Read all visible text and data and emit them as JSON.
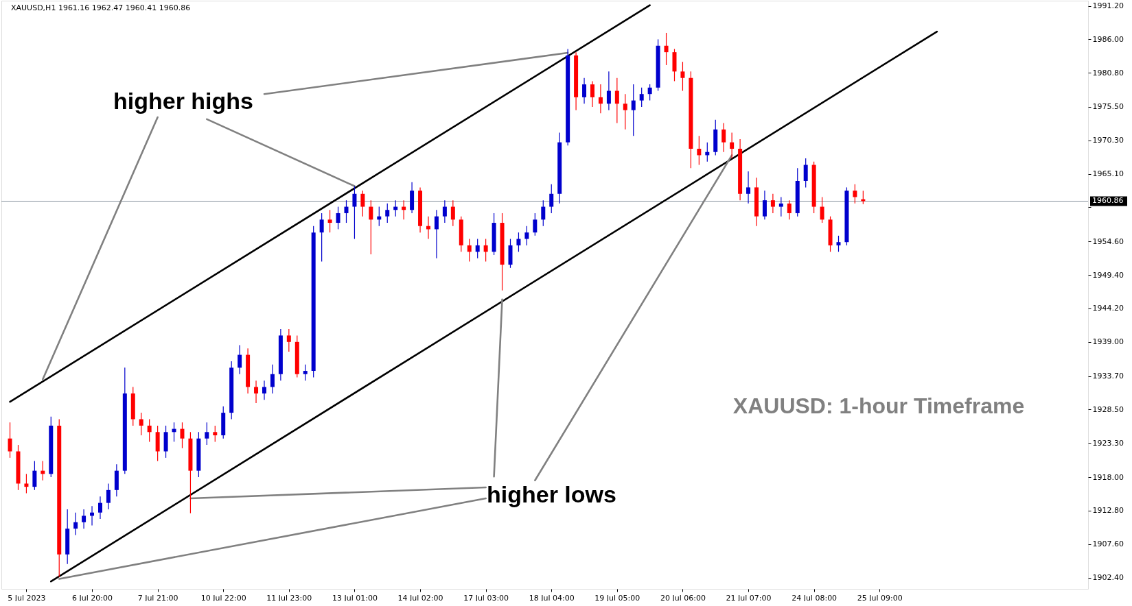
{
  "chart_data": {
    "type": "candlestick",
    "title": "XAUUSD,H1  1961.16 1962.47 1960.41 1960.86",
    "annotations": [
      "higher highs",
      "higher lows",
      "XAUUSD: 1-hour Timeframe"
    ],
    "categories": [
      null,
      null,
      "5 Jul 2023",
      null,
      null,
      null,
      null,
      null,
      null,
      null,
      "6 Jul 20:00",
      null,
      null,
      null,
      null,
      null,
      null,
      null,
      "7 Jul 21:00",
      null,
      null,
      null,
      null,
      null,
      null,
      null,
      "10 Jul 22:00",
      null,
      null,
      null,
      null,
      null,
      null,
      null,
      "11 Jul 23:00",
      null,
      null,
      null,
      null,
      null,
      null,
      null,
      "13 Jul 01:00",
      null,
      null,
      null,
      null,
      null,
      null,
      null,
      "14 Jul 02:00",
      null,
      null,
      null,
      null,
      null,
      null,
      null,
      "17 Jul 03:00",
      null,
      null,
      null,
      null,
      null,
      null,
      null,
      "18 Jul 04:00",
      null,
      null,
      null,
      null,
      null,
      null,
      null,
      "19 Jul 05:00",
      null,
      null,
      null,
      null,
      null,
      null,
      null,
      "20 Jul 06:00",
      null,
      null,
      null,
      null,
      null,
      null,
      null,
      "21 Jul 07:00",
      null,
      null,
      null,
      null,
      null,
      null,
      null,
      "24 Jul 08:00",
      null,
      null,
      null,
      null,
      null,
      null,
      null,
      "25 Jul 09:00",
      null,
      null,
      null,
      null,
      null,
      null,
      null,
      null,
      null,
      null,
      null,
      null,
      null,
      null,
      null,
      null,
      null,
      null,
      null,
      null,
      null,
      null,
      null,
      null,
      null
    ],
    "ylim": [
      1900.65,
      1992.0
    ],
    "yticks": [
      {
        "value": 1991.2,
        "label": "1991.20"
      },
      {
        "value": 1986.0,
        "label": "1986.00"
      },
      {
        "value": 1980.8,
        "label": "1980.80"
      },
      {
        "value": 1975.5,
        "label": "1975.50"
      },
      {
        "value": 1970.3,
        "label": "1970.30"
      },
      {
        "value": 1965.1,
        "label": "1965.10"
      },
      {
        "value": 1959.9,
        "label": null
      },
      {
        "value": 1954.6,
        "label": "1954.60"
      },
      {
        "value": 1949.4,
        "label": "1949.40"
      },
      {
        "value": 1944.2,
        "label": "1944.20"
      },
      {
        "value": 1939.0,
        "label": "1939.00"
      },
      {
        "value": 1933.7,
        "label": "1933.70"
      },
      {
        "value": 1928.5,
        "label": "1928.50"
      },
      {
        "value": 1923.3,
        "label": "1923.30"
      },
      {
        "value": 1918.0,
        "label": "1918.00"
      },
      {
        "value": 1912.8,
        "label": "1912.80"
      },
      {
        "value": 1907.6,
        "label": "1907.60"
      },
      {
        "value": 1902.4,
        "label": "1902.40"
      }
    ],
    "ref_lines": [
      {
        "axis": "y",
        "value": 1960.86,
        "label": "1960.86",
        "color": "#8a96a0"
      }
    ],
    "grid": false,
    "series": [
      {
        "ohlc": [
          [
            1924,
            1926.5,
            1921,
            1922
          ],
          [
            1922,
            1923,
            1916,
            1917
          ],
          [
            1917,
            1918.5,
            1915.5,
            1916.5
          ],
          [
            1916.5,
            1920.5,
            1916,
            1919
          ],
          [
            1919,
            1920.5,
            1917.5,
            1918.5
          ],
          [
            1918.5,
            1927.4,
            1918,
            1926
          ],
          [
            1926,
            1927,
            1902.5,
            1906
          ],
          [
            1906,
            1913,
            1904.5,
            1910
          ],
          [
            1910,
            1912.5,
            1909,
            1911
          ],
          [
            1911,
            1913,
            1910,
            1912
          ],
          [
            1912,
            1913.5,
            1910.5,
            1912.5
          ],
          [
            1912.5,
            1915,
            1911.5,
            1914
          ],
          [
            1914,
            1917,
            1913,
            1916
          ],
          [
            1916,
            1920,
            1915,
            1919
          ],
          [
            1919,
            1935,
            1918.5,
            1931
          ],
          [
            1931,
            1932,
            1926,
            1927
          ],
          [
            1927,
            1928,
            1924.5,
            1926
          ],
          [
            1926,
            1927,
            1923.5,
            1925
          ],
          [
            1925,
            1926,
            1920.5,
            1922
          ],
          [
            1922,
            1926,
            1921,
            1925
          ],
          [
            1925,
            1926.5,
            1923.5,
            1925.5
          ],
          [
            1925.5,
            1926.5,
            1922.5,
            1924
          ],
          [
            1924,
            1925,
            1912.4,
            1919
          ],
          [
            1919,
            1925,
            1918,
            1924
          ],
          [
            1924,
            1926.5,
            1923,
            1925
          ],
          [
            1925,
            1926,
            1923.5,
            1924.5
          ],
          [
            1924.5,
            1929,
            1924,
            1928
          ],
          [
            1928,
            1936,
            1927,
            1935
          ],
          [
            1935,
            1938.5,
            1934,
            1937
          ],
          [
            1937,
            1938,
            1931,
            1932
          ],
          [
            1932,
            1933,
            1929.5,
            1931
          ],
          [
            1931,
            1933,
            1930,
            1932
          ],
          [
            1932,
            1935.5,
            1931,
            1934
          ],
          [
            1934,
            1941,
            1933,
            1940
          ],
          [
            1940,
            1941,
            1937.5,
            1939
          ],
          [
            1939,
            1940,
            1933.5,
            1934
          ],
          [
            1934,
            1935.5,
            1933,
            1934.5
          ],
          [
            1934.5,
            1957,
            1933.5,
            1956
          ],
          [
            1956,
            1959,
            1951.5,
            1958
          ],
          [
            1958,
            1959.5,
            1956,
            1957.5
          ],
          [
            1957.5,
            1960,
            1956.5,
            1959
          ],
          [
            1959,
            1961,
            1957.5,
            1960
          ],
          [
            1960,
            1963.2,
            1955,
            1962
          ],
          [
            1962,
            1962.5,
            1958.5,
            1960
          ],
          [
            1960,
            1961,
            1952.6,
            1958
          ],
          [
            1958,
            1960,
            1957,
            1958.5
          ],
          [
            1958.5,
            1960.5,
            1957.5,
            1959.5
          ],
          [
            1959.5,
            1961,
            1958.5,
            1960
          ],
          [
            1960,
            1961,
            1958,
            1959.5
          ],
          [
            1959.5,
            1963.8,
            1959,
            1962.5
          ],
          [
            1962.5,
            1963,
            1956,
            1957
          ],
          [
            1957,
            1958.5,
            1955,
            1956.5
          ],
          [
            1956.5,
            1959.5,
            1952,
            1958.5
          ],
          [
            1958.5,
            1961,
            1957.5,
            1960
          ],
          [
            1960,
            1961,
            1957,
            1958
          ],
          [
            1958,
            1958.5,
            1953,
            1954
          ],
          [
            1954,
            1955,
            1951.5,
            1953
          ],
          [
            1953,
            1955,
            1952,
            1954
          ],
          [
            1954,
            1955,
            1951.5,
            1953
          ],
          [
            1953,
            1959,
            1952.5,
            1957.5
          ],
          [
            1957.5,
            1959,
            1947,
            1951
          ],
          [
            1951,
            1955,
            1950.5,
            1954
          ],
          [
            1954,
            1956,
            1953,
            1955
          ],
          [
            1955,
            1957,
            1954,
            1956
          ],
          [
            1956,
            1959,
            1955.5,
            1958
          ],
          [
            1958,
            1961,
            1957,
            1960
          ],
          [
            1960,
            1963.5,
            1959,
            1962
          ],
          [
            1962,
            1971.5,
            1960.5,
            1970
          ],
          [
            1970,
            1984.5,
            1969.5,
            1983.5
          ],
          [
            1983.5,
            1984,
            1975,
            1977
          ],
          [
            1977,
            1980,
            1976,
            1979
          ],
          [
            1979,
            1979.5,
            1975.5,
            1977
          ],
          [
            1977,
            1979,
            1974.5,
            1976
          ],
          [
            1976,
            1981,
            1975,
            1978
          ],
          [
            1978,
            1980,
            1973,
            1976
          ],
          [
            1976,
            1977.5,
            1972,
            1975
          ],
          [
            1975,
            1979,
            1971,
            1976.5
          ],
          [
            1976.5,
            1978.5,
            1975.5,
            1977.5
          ],
          [
            1977.5,
            1979,
            1976.5,
            1978.5
          ],
          [
            1978.5,
            1986,
            1978,
            1985
          ],
          [
            1985,
            1987,
            1982,
            1984
          ],
          [
            1984,
            1984.5,
            1979.5,
            1981
          ],
          [
            1981,
            1982.5,
            1978,
            1980
          ],
          [
            1980,
            1981,
            1966,
            1969
          ],
          [
            1969,
            1971,
            1966.5,
            1968
          ],
          [
            1968,
            1970,
            1967,
            1968.5
          ],
          [
            1968.5,
            1973.5,
            1968,
            1972
          ],
          [
            1972,
            1973,
            1968.5,
            1970
          ],
          [
            1970,
            1971.5,
            1967.5,
            1969
          ],
          [
            1969,
            1970.5,
            1961,
            1962
          ],
          [
            1962,
            1965.5,
            1960.5,
            1963
          ],
          [
            1963,
            1964.5,
            1957,
            1958.5
          ],
          [
            1958.5,
            1962.5,
            1958,
            1961
          ],
          [
            1961,
            1962,
            1959,
            1960
          ],
          [
            1960,
            1961.5,
            1958.5,
            1960.5
          ],
          [
            1960.5,
            1961,
            1958,
            1959
          ],
          [
            1959,
            1966,
            1958.5,
            1964
          ],
          [
            1964,
            1967.5,
            1963,
            1966.5
          ],
          [
            1966.5,
            1967,
            1959,
            1960
          ],
          [
            1960,
            1961.5,
            1957.5,
            1958
          ],
          [
            1958,
            1958.5,
            1953,
            1954
          ],
          [
            1954,
            1955.5,
            1953,
            1954.5
          ],
          [
            1954.5,
            1963,
            1954,
            1962.5
          ],
          [
            1962.5,
            1963.5,
            1960.5,
            1961.5
          ],
          [
            1961.16,
            1962.47,
            1960.41,
            1960.86
          ],
          null,
          null,
          null,
          null,
          null,
          null,
          null,
          null,
          null,
          null,
          null,
          null,
          null,
          null,
          null,
          null,
          null,
          null,
          null,
          null,
          null,
          null,
          null,
          null,
          null,
          null,
          null
        ],
        "colors": [
          "#ff0000",
          "#ff0000",
          "#ff0000",
          "#0000cd",
          "#ff0000",
          "#0000cd",
          "#ff0000",
          "#0000cd",
          "#0000cd",
          "#0000cd",
          "#0000cd",
          "#0000cd",
          "#0000cd",
          "#0000cd",
          "#0000cd",
          "#ff0000",
          "#ff0000",
          "#ff0000",
          "#ff0000",
          "#0000cd",
          "#0000cd",
          "#ff0000",
          "#ff0000",
          "#0000cd",
          "#0000cd",
          "#ff0000",
          "#0000cd",
          "#0000cd",
          "#0000cd",
          "#ff0000",
          "#ff0000",
          "#0000cd",
          "#0000cd",
          "#0000cd",
          "#ff0000",
          "#ff0000",
          "#0000cd",
          "#0000cd",
          "#0000cd",
          "#ff0000",
          "#0000cd",
          "#0000cd",
          "#0000cd",
          "#ff0000",
          "#ff0000",
          "#0000cd",
          "#0000cd",
          "#0000cd",
          "#ff0000",
          "#0000cd",
          "#ff0000",
          "#ff0000",
          "#0000cd",
          "#0000cd",
          "#ff0000",
          "#ff0000",
          "#ff0000",
          "#0000cd",
          "#ff0000",
          "#0000cd",
          "#ff0000",
          "#0000cd",
          "#0000cd",
          "#0000cd",
          "#0000cd",
          "#0000cd",
          "#0000cd",
          "#0000cd",
          "#0000cd",
          "#ff0000",
          "#0000cd",
          "#ff0000",
          "#ff0000",
          "#0000cd",
          "#ff0000",
          "#ff0000",
          "#0000cd",
          "#0000cd",
          "#0000cd",
          "#0000cd",
          "#ff0000",
          "#ff0000",
          "#ff0000",
          "#ff0000",
          "#ff0000",
          "#0000cd",
          "#0000cd",
          "#ff0000",
          "#ff0000",
          "#ff0000",
          "#0000cd",
          "#ff0000",
          "#0000cd",
          "#ff0000",
          "#0000cd",
          "#ff0000",
          "#0000cd",
          "#0000cd",
          "#ff0000",
          "#ff0000",
          "#ff0000",
          "#0000cd",
          "#0000cd",
          "#ff0000",
          "#ff0000",
          null,
          null,
          null,
          null,
          null,
          null,
          null,
          null,
          null,
          null,
          null,
          null,
          null,
          null,
          null,
          null,
          null,
          null,
          null,
          null,
          null,
          null,
          null,
          null,
          null,
          null,
          null
        ]
      },
      {
        "type": "line",
        "color": "#000000",
        "values": [
          1929.7,
          null,
          null,
          null,
          null,
          null,
          null,
          null,
          null,
          null,
          null,
          null,
          null,
          null,
          null,
          null,
          null,
          null,
          null,
          null,
          null,
          null,
          null,
          null,
          null,
          null,
          null,
          null,
          null,
          null,
          null,
          null,
          null,
          null,
          null,
          null,
          null,
          null,
          null,
          null,
          null,
          null,
          null,
          null,
          null,
          null,
          null,
          null,
          null,
          null,
          null,
          null,
          null,
          null,
          null,
          null,
          null,
          null,
          null,
          null,
          null,
          null,
          null,
          null,
          null,
          null,
          null,
          null,
          null,
          null,
          null,
          null,
          null,
          null,
          null,
          null,
          null,
          null,
          1991.3,
          null,
          null,
          null,
          null,
          null,
          null,
          null,
          null,
          null,
          null,
          null,
          null,
          null,
          null,
          null,
          null,
          null,
          null,
          null,
          null,
          null,
          null,
          null,
          null,
          null,
          null,
          null,
          null,
          null,
          null,
          null,
          null,
          null,
          null,
          null,
          null,
          null,
          null,
          null,
          null,
          null,
          null,
          null,
          null,
          null,
          null,
          null,
          null,
          null,
          null,
          null,
          null,
          null
        ]
      },
      {
        "type": "line",
        "color": "#000000",
        "values": [
          null,
          null,
          null,
          null,
          null,
          1901.8,
          null,
          null,
          null,
          null,
          null,
          null,
          null,
          null,
          null,
          null,
          null,
          null,
          null,
          null,
          null,
          null,
          null,
          null,
          null,
          null,
          null,
          null,
          null,
          null,
          null,
          null,
          null,
          null,
          null,
          null,
          null,
          null,
          null,
          null,
          null,
          null,
          null,
          null,
          null,
          null,
          null,
          null,
          null,
          null,
          null,
          null,
          null,
          null,
          null,
          null,
          null,
          null,
          null,
          null,
          null,
          null,
          null,
          null,
          null,
          null,
          null,
          null,
          null,
          null,
          null,
          null,
          null,
          null,
          null,
          null,
          null,
          null,
          null,
          null,
          null,
          null,
          null,
          null,
          null,
          null,
          null,
          null,
          null,
          null,
          null,
          null,
          null,
          null,
          null,
          null,
          null,
          null,
          null,
          null,
          null,
          null,
          null,
          null,
          null,
          null,
          null,
          null,
          null,
          null,
          null,
          null,
          null,
          1987.2,
          null,
          null,
          null,
          null,
          null,
          null,
          null,
          null,
          null,
          null,
          null,
          null,
          null,
          null,
          null,
          null,
          null,
          null
        ]
      },
      {
        "type": "line",
        "color": "#808080",
        "values": [
          null,
          null,
          null,
          null,
          null,
          null,
          null,
          null,
          null,
          null,
          null,
          null,
          null,
          null,
          null,
          null,
          null,
          null,
          null,
          null,
          null,
          null,
          null,
          null,
          null,
          null,
          null,
          null,
          null,
          null,
          null,
          1977.5,
          null,
          null,
          null,
          null,
          null,
          null,
          null,
          null,
          null,
          null,
          null,
          null,
          null,
          null,
          null,
          null,
          null,
          null,
          null,
          null,
          null,
          null,
          null,
          null,
          null,
          null,
          null,
          null,
          null,
          null,
          null,
          null,
          null,
          null,
          null,
          null,
          1983.9,
          null,
          null,
          null,
          null,
          null,
          null,
          null,
          null,
          null,
          null,
          null,
          null,
          null,
          null,
          null,
          null,
          null,
          null,
          null,
          null,
          null,
          null,
          null,
          null,
          null,
          null,
          null,
          null,
          null,
          null,
          null,
          null,
          null,
          null,
          null,
          null,
          null,
          null,
          null,
          null,
          null,
          null,
          null,
          null,
          null,
          null,
          null,
          null,
          null,
          null,
          null,
          null,
          null,
          null,
          null,
          null,
          null,
          null,
          null,
          null,
          null,
          null,
          null
        ]
      },
      {
        "type": "line",
        "color": "#808080",
        "values": [
          null,
          null,
          null,
          null,
          null,
          null,
          null,
          null,
          null,
          null,
          null,
          null,
          null,
          null,
          null,
          null,
          null,
          null,
          null,
          null,
          null,
          null,
          null,
          null,
          1973.6,
          null,
          null,
          null,
          null,
          null,
          null,
          null,
          null,
          null,
          null,
          null,
          null,
          null,
          null,
          null,
          null,
          null,
          1963.2,
          null,
          null,
          null,
          null,
          null,
          null,
          null,
          null,
          null,
          null,
          null,
          null,
          null,
          null,
          null,
          null,
          null,
          null,
          null,
          null,
          null,
          null,
          null,
          null,
          null,
          null,
          null,
          null,
          null,
          null,
          null,
          null,
          null,
          null,
          null,
          null,
          null,
          null,
          null,
          null,
          null,
          null,
          null,
          null,
          null,
          null,
          null,
          null,
          null,
          null,
          null,
          null,
          null,
          null,
          null,
          null,
          null,
          null,
          null,
          null,
          null,
          null,
          null,
          null,
          null,
          null,
          null,
          null,
          null,
          null,
          null,
          null,
          null,
          null,
          null,
          null,
          null,
          null,
          null,
          null,
          null,
          null,
          null,
          null,
          null,
          null,
          null,
          null,
          null
        ]
      },
      {
        "type": "line",
        "color": "#808080",
        "values": [
          null,
          null,
          null,
          null,
          1933.2,
          null,
          null,
          null,
          null,
          null,
          null,
          null,
          null,
          null,
          null,
          null,
          null,
          null,
          1973.9,
          null,
          null,
          null,
          null,
          null,
          null,
          null,
          null,
          null,
          null,
          null,
          null,
          null,
          null,
          null,
          null,
          null,
          null,
          null,
          null,
          null,
          null,
          null,
          null,
          null,
          null,
          null,
          null,
          null,
          null,
          null,
          null,
          null,
          null,
          null,
          null,
          null,
          null,
          null,
          null,
          null,
          null,
          null,
          null,
          null,
          null,
          null,
          null,
          null,
          null,
          null,
          null,
          null,
          null,
          null,
          null,
          null,
          null,
          null,
          null,
          null,
          null,
          null,
          null,
          null,
          null,
          null,
          null,
          null,
          null,
          null,
          null,
          null,
          null,
          null,
          null,
          null,
          null,
          null,
          null,
          null,
          null,
          null,
          null,
          null,
          null,
          null,
          null,
          null,
          null,
          null,
          null,
          null,
          null,
          null,
          null,
          null,
          null,
          null,
          null,
          null,
          null,
          null,
          null,
          null,
          null,
          null,
          null,
          null,
          null,
          null,
          null,
          null
        ]
      },
      {
        "type": "line",
        "color": "#808080",
        "values": [
          null,
          null,
          null,
          null,
          null,
          null,
          null,
          null,
          null,
          null,
          null,
          null,
          null,
          null,
          null,
          null,
          null,
          null,
          null,
          null,
          null,
          null,
          1914.7,
          null,
          null,
          null,
          null,
          null,
          null,
          null,
          null,
          null,
          null,
          null,
          null,
          null,
          null,
          null,
          null,
          null,
          null,
          null,
          null,
          null,
          null,
          null,
          null,
          null,
          null,
          null,
          null,
          null,
          null,
          null,
          null,
          null,
          null,
          null,
          1916.4,
          null,
          null,
          null,
          null,
          null,
          null,
          null,
          null,
          null,
          null,
          null,
          null,
          null,
          null,
          null,
          null,
          null,
          null,
          null,
          null,
          null,
          null,
          null,
          null,
          null,
          null,
          null,
          null,
          null,
          null,
          null,
          null,
          null,
          null,
          null,
          null,
          null,
          null,
          null,
          null,
          null,
          null,
          null,
          null,
          null,
          null,
          null,
          null,
          null,
          null,
          null,
          null,
          null,
          null,
          null,
          null,
          null,
          null,
          null,
          null,
          null,
          null,
          null,
          null,
          null,
          null,
          null,
          null,
          null,
          null,
          null,
          null,
          null
        ]
      },
      {
        "type": "line",
        "color": "#808080",
        "values": [
          null,
          null,
          null,
          null,
          null,
          null,
          1902.2,
          null,
          null,
          null,
          null,
          null,
          null,
          null,
          null,
          null,
          null,
          null,
          null,
          null,
          null,
          null,
          null,
          null,
          null,
          null,
          null,
          null,
          null,
          null,
          null,
          null,
          null,
          null,
          null,
          null,
          null,
          null,
          null,
          null,
          null,
          null,
          null,
          null,
          null,
          null,
          null,
          null,
          null,
          null,
          null,
          null,
          null,
          null,
          null,
          null,
          null,
          null,
          1914.7,
          null,
          null,
          null,
          null,
          null,
          null,
          null,
          null,
          null,
          null,
          null,
          null,
          null,
          null,
          null,
          null,
          null,
          null,
          null,
          null,
          null,
          null,
          null,
          null,
          null,
          null,
          null,
          null,
          null,
          null,
          null,
          null,
          null,
          null,
          null,
          null,
          null,
          null,
          null,
          null,
          null,
          null,
          null,
          null,
          null,
          null,
          null,
          null,
          null,
          null,
          null,
          null,
          null,
          null,
          null,
          null,
          null,
          null,
          null,
          null,
          null,
          null,
          null,
          null,
          null,
          null,
          null,
          null,
          null,
          null,
          null,
          null,
          null
        ]
      },
      {
        "type": "line",
        "color": "#808080",
        "values": [
          null,
          null,
          null,
          null,
          null,
          null,
          null,
          null,
          null,
          null,
          null,
          null,
          null,
          null,
          null,
          null,
          null,
          null,
          null,
          null,
          null,
          null,
          null,
          null,
          null,
          null,
          null,
          null,
          null,
          null,
          null,
          null,
          null,
          null,
          null,
          null,
          null,
          null,
          null,
          null,
          null,
          null,
          null,
          null,
          null,
          null,
          null,
          null,
          null,
          null,
          null,
          null,
          null,
          null,
          null,
          null,
          null,
          null,
          null,
          1918.1,
          1945.6,
          null,
          null,
          null,
          null,
          null,
          null,
          null,
          null,
          null,
          null,
          null,
          null,
          null,
          null,
          null,
          null,
          null,
          null,
          null,
          null,
          null,
          null,
          null,
          null,
          null,
          null,
          null,
          null,
          null,
          null,
          null,
          null,
          null,
          null,
          null,
          null,
          null,
          null,
          null,
          null,
          null,
          null,
          null,
          null,
          null,
          null,
          null,
          null,
          null,
          null,
          null,
          null,
          null,
          null,
          null,
          null,
          null,
          null,
          null,
          null,
          null,
          null,
          null,
          null,
          null,
          null,
          null,
          null,
          null,
          null,
          null
        ]
      },
      {
        "type": "line",
        "color": "#808080",
        "values": [
          null,
          null,
          null,
          null,
          null,
          null,
          null,
          null,
          null,
          null,
          null,
          null,
          null,
          null,
          null,
          null,
          null,
          null,
          null,
          null,
          null,
          null,
          null,
          null,
          null,
          null,
          null,
          null,
          null,
          null,
          null,
          null,
          null,
          null,
          null,
          null,
          null,
          null,
          null,
          null,
          null,
          null,
          null,
          null,
          null,
          null,
          null,
          null,
          null,
          null,
          null,
          null,
          null,
          null,
          null,
          null,
          null,
          null,
          null,
          null,
          null,
          null,
          null,
          null,
          1917.5,
          null,
          null,
          null,
          null,
          null,
          null,
          null,
          null,
          null,
          null,
          null,
          null,
          null,
          null,
          null,
          null,
          null,
          null,
          null,
          null,
          null,
          null,
          null,
          1968.0,
          null,
          null,
          null,
          null,
          null,
          null,
          null,
          null,
          null,
          null,
          null,
          null,
          null,
          null,
          null,
          null,
          null,
          null,
          null,
          null,
          null,
          null,
          null,
          null,
          null,
          null,
          null,
          null,
          null,
          null,
          null,
          null,
          null,
          null,
          null,
          null,
          null,
          null,
          null,
          null,
          null,
          null,
          null
        ]
      }
    ]
  }
}
